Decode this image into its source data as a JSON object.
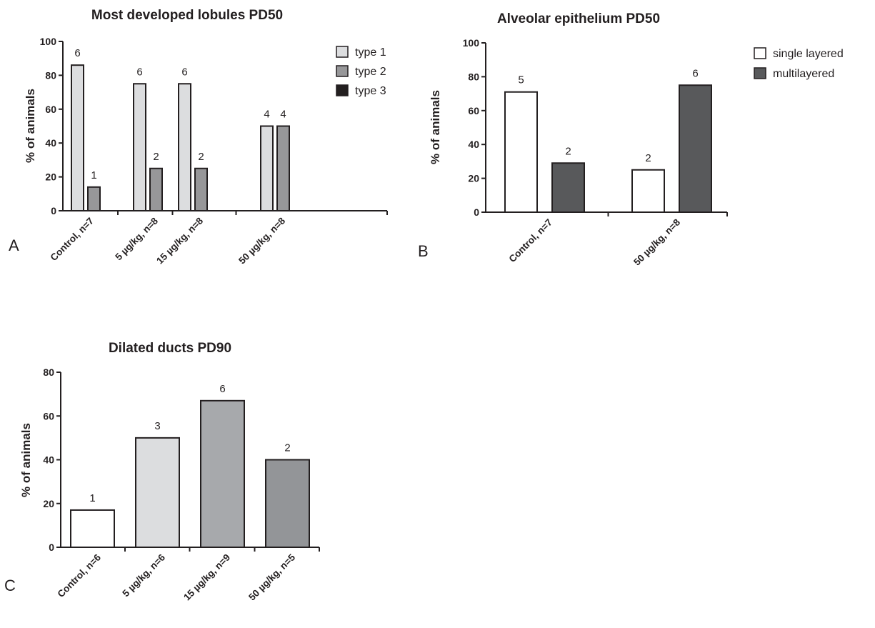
{
  "colors": {
    "axis": "#231f20",
    "type1": "#dcdddf",
    "type2": "#979799",
    "type3": "#231f20",
    "single": "#ffffff",
    "multi": "#58595b",
    "c_control": "#ffffff",
    "c_5": "#dcdddf",
    "c_15": "#a7a9ac",
    "c_50": "#939598"
  },
  "chart_data": [
    {
      "id": "A",
      "panel_label": "A",
      "type": "bar",
      "title": "Most developed lobules PD50",
      "ylabel": "% of animals",
      "xlabel": "",
      "ylim": [
        0,
        100
      ],
      "yticks": [
        "0",
        "20",
        "40",
        "60",
        "80",
        "100"
      ],
      "categories": [
        "Control, n=7",
        "5 µg/kg, n=8",
        "15 µg/kg, n=8",
        "50 µg/kg, n=8"
      ],
      "legend_position": "right",
      "series": [
        {
          "name": "type 1",
          "color_key": "type1",
          "values": [
            86,
            75,
            75,
            50
          ],
          "labels": [
            "6",
            "6",
            "6",
            "4"
          ]
        },
        {
          "name": "type 2",
          "color_key": "type2",
          "values": [
            14,
            25,
            25,
            50
          ],
          "labels": [
            "1",
            "2",
            "2",
            "4"
          ]
        },
        {
          "name": "type 3",
          "color_key": "type3",
          "values": [
            0,
            0,
            0,
            0
          ],
          "labels": [
            "",
            "",
            "",
            ""
          ]
        }
      ]
    },
    {
      "id": "B",
      "panel_label": "B",
      "type": "bar",
      "title": "Alveolar epithelium PD50",
      "ylabel": "% of animals",
      "xlabel": "",
      "ylim": [
        0,
        100
      ],
      "yticks": [
        "0",
        "20",
        "40",
        "60",
        "80",
        "100"
      ],
      "categories": [
        "Control, n=7",
        "50 µg/kg, n=8"
      ],
      "legend_position": "right",
      "series": [
        {
          "name": "single layered",
          "color_key": "single",
          "values": [
            71,
            25
          ],
          "labels": [
            "5",
            "2"
          ]
        },
        {
          "name": "multilayered",
          "color_key": "multi",
          "values": [
            29,
            75
          ],
          "labels": [
            "2",
            "6"
          ]
        }
      ]
    },
    {
      "id": "C",
      "panel_label": "C",
      "type": "bar",
      "title": "Dilated ducts PD90",
      "ylabel": "% of animals",
      "xlabel": "",
      "ylim": [
        0,
        80
      ],
      "yticks": [
        "0",
        "20",
        "40",
        "60",
        "80"
      ],
      "categories": [
        "Control, n=6",
        "5 µg/kg, n=6",
        "15 µg/kg, n=9",
        "50 µg/kg, n=5"
      ],
      "legend_position": "none",
      "bar_color_keys": [
        "c_control",
        "c_5",
        "c_15",
        "c_50"
      ],
      "series": [
        {
          "values": [
            17,
            50,
            67,
            40
          ],
          "labels": [
            "1",
            "3",
            "6",
            "2"
          ]
        }
      ]
    }
  ]
}
